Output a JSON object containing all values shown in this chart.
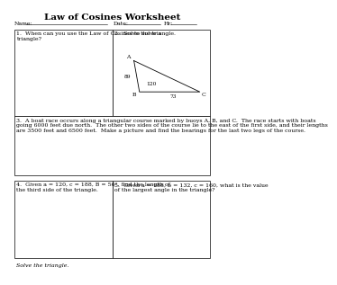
{
  "title": "Law of Cosines Worksheet",
  "name_label": "Name:",
  "date_label": "Date:",
  "hr_label": "Hr:",
  "q1_text": "1.  When can you use the Law of Cosines to solve a\ntriangle?",
  "q2_text": "2.  Solve the triangle.",
  "q3_text": "3.  A boat race occurs along a triangular course marked by buoys A, B, and C.  The race starts with boats going 6000 feet due north.  The other two sides of the course lie to the east of the first side, and their lengths are 3500 feet and 6500 feet.  Make a picture and find the bearings for the last two legs of the course.",
  "q4_text": "4.  Given a = 120, c = 188, B = 56°, find the length of\nthe third side of the triangle.",
  "q5_text": "5.  Given a = 188, b = 132, c = 160, what is the value\nof the largest angle in the triangle?",
  "footer_text": "Solve the triangle.",
  "bg_color": "#ffffff",
  "border_color": "#000000",
  "text_color": "#000000",
  "fontsize_title": 7.5,
  "fontsize_text": 4.5,
  "fontsize_small": 4.2
}
